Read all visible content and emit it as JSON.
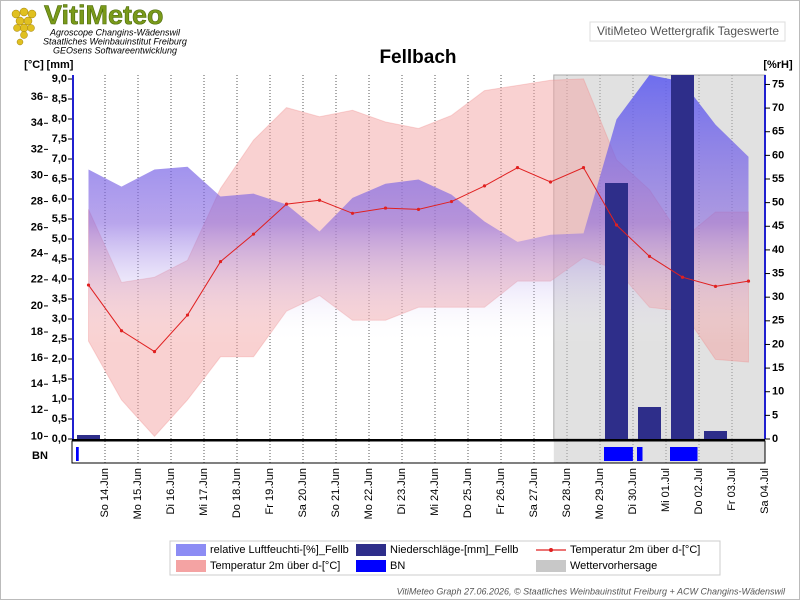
{
  "header": {
    "logo": "VitiMeteo",
    "lines": [
      "Agroscope Changins-Wädenswil",
      "Staatliches Weinbauinstitut Freiburg",
      "GEOsens Softwareentwicklung"
    ],
    "box": "VitiMeteo Wettergrafik Tageswerte"
  },
  "chart_data": {
    "type": "combo",
    "title": "Fellbach",
    "categories": [
      "So 14.Jun",
      "Mo 15.Jun",
      "Di 16.Jun",
      "Mi 17.Jun",
      "Do 18.Jun",
      "Fr 19.Jun",
      "Sa 20.Jun",
      "So 21.Jun",
      "Mo 22.Jun",
      "Di 23.Jun",
      "Mi 24.Jun",
      "Do 25.Jun",
      "Fr 26.Jun",
      "Sa 27.Jun",
      "So 28.Jun",
      "Mo 29.Jun",
      "Di 30.Jun",
      "Mi 01.Jul",
      "Do 02.Jul",
      "Fr 03.Jul",
      "Sa 04.Jul"
    ],
    "y_label": "[°C]",
    "y2_label": "[mm]",
    "y3_label": "[%rH]",
    "strip_label": "BN",
    "ylim": [
      9.8,
      37.7
    ],
    "yticks": [
      10,
      12,
      14,
      16,
      18,
      20,
      22,
      24,
      26,
      28,
      30,
      32,
      34,
      36
    ],
    "y2lim": [
      0,
      9.1
    ],
    "y2ticks": [
      {
        "value": 0,
        "label": "0,0"
      },
      {
        "value": 0.5,
        "label": "0,5"
      },
      {
        "value": 1,
        "label": "1,0"
      },
      {
        "value": 1.5,
        "label": "1,5"
      },
      {
        "value": 2,
        "label": "2,0"
      },
      {
        "value": 2.5,
        "label": "2,5"
      },
      {
        "value": 3,
        "label": "3,0"
      },
      {
        "value": 3.5,
        "label": "3,5"
      },
      {
        "value": 4,
        "label": "4,0"
      },
      {
        "value": 4.5,
        "label": "4,5"
      },
      {
        "value": 5,
        "label": "5,0"
      },
      {
        "value": 5.5,
        "label": "5,5"
      },
      {
        "value": 6,
        "label": "6,0"
      },
      {
        "value": 6.5,
        "label": "6,5"
      },
      {
        "value": 7,
        "label": "7,0"
      },
      {
        "value": 7.5,
        "label": "7,5"
      },
      {
        "value": 8,
        "label": "8,0"
      },
      {
        "value": 8.5,
        "label": "8,5"
      },
      {
        "value": 9,
        "label": "9,0"
      }
    ],
    "y3lim": [
      0,
      77
    ],
    "y3ticks": [
      0,
      5,
      10,
      15,
      20,
      25,
      30,
      35,
      40,
      45,
      50,
      55,
      60,
      65,
      70,
      75
    ],
    "series": [
      {
        "name": "relative Luftfeuchti-[%]_Fellb",
        "type": "area",
        "axis": "y3",
        "color": "#6b6bf2",
        "values": [
          57,
          53.4,
          57,
          57.6,
          51.3,
          51.9,
          49.6,
          43.9,
          51,
          54,
          54.9,
          51.7,
          46,
          41.7,
          43.2,
          43.5,
          67.6,
          77,
          75.6,
          66.5,
          59.7
        ]
      },
      {
        "name": "Niederschläge-[mm]_Fellb",
        "type": "bar",
        "axis": "y2",
        "color": "#2e2e8a",
        "values": [
          0.1,
          0,
          0,
          0,
          0,
          0,
          0,
          0,
          0,
          0,
          0,
          0,
          0,
          0,
          0,
          0,
          6.4,
          0.8,
          9.1,
          0.2,
          0
        ]
      },
      {
        "name": "Temperatur 2m über d-[°C]",
        "type": "line",
        "axis": "y",
        "color": "#e02020",
        "values": [
          21.6,
          18.1,
          16.5,
          19.3,
          23.4,
          25.5,
          27.8,
          28.1,
          27.1,
          27.5,
          27.4,
          28.0,
          29.2,
          30.6,
          29.5,
          30.6,
          26.2,
          23.8,
          22.2,
          21.5,
          21.9
        ]
      },
      {
        "name": "Temperatur 2m über d-[°C]",
        "type": "band",
        "axis": "y",
        "color": "#f4a3a3",
        "high": [
          27.4,
          21.8,
          22.2,
          23.5,
          29.0,
          32.7,
          35.2,
          34.5,
          35.0,
          34.1,
          33.6,
          34.6,
          36.5,
          36.9,
          37.3,
          37.4,
          31.2,
          28.9,
          25.1,
          27.2,
          27.2
        ],
        "low": [
          17.3,
          12.8,
          10.0,
          12.8,
          16.1,
          16.1,
          19.6,
          20.8,
          18.9,
          18.9,
          19.9,
          19.9,
          19.9,
          21.9,
          21.9,
          23.7,
          22.8,
          19.9,
          19.6,
          15.9,
          15.7
        ]
      },
      {
        "name": "BN",
        "type": "strip",
        "color": "#0000ff",
        "values": [
          2,
          0,
          0,
          0,
          0,
          0,
          0,
          0,
          0,
          0,
          0,
          0,
          0,
          0,
          0,
          0,
          21,
          4,
          20,
          0,
          0
        ]
      },
      {
        "name": "Wettervorhersage",
        "type": "shade",
        "color": "#c8c8c8"
      }
    ]
  },
  "footer": "VitiMeteo Graph 27.06.2026, © Staatliches Weinbauinstitut Freiburg + ACW Changins-Wädenswil"
}
